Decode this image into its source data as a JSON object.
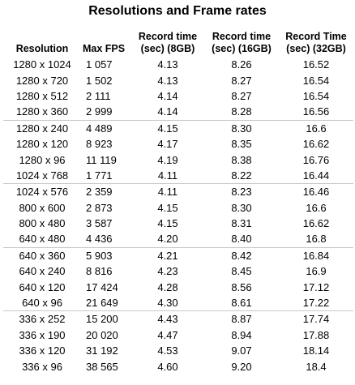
{
  "title": "Resolutions and Frame rates",
  "headers": {
    "resolution": "Resolution",
    "max_fps": "Max FPS",
    "record_8gb_line1": "Record time",
    "record_8gb_line2": "(sec) (8GB)",
    "record_16gb_line1": "Record time",
    "record_16gb_line2": "(sec) (16GB)",
    "record_32gb_line1": "Record Time",
    "record_32gb_line2": "(sec) (32GB)"
  },
  "rows": [
    {
      "resolution": "1280 x 1024",
      "max_fps": "1 057",
      "t8": "4.13",
      "t16": "8.26",
      "t32": "16.52"
    },
    {
      "resolution": "1280 x 720",
      "max_fps": "1 502",
      "t8": "4.13",
      "t16": "8.27",
      "t32": "16.54"
    },
    {
      "resolution": "1280 x 512",
      "max_fps": "2 111",
      "t8": "4.14",
      "t16": "8.27",
      "t32": "16.54"
    },
    {
      "resolution": "1280 x 360",
      "max_fps": "2 999",
      "t8": "4.14",
      "t16": "8.28",
      "t32": "16.56"
    },
    {
      "resolution": "1280 x 240",
      "max_fps": "4 489",
      "t8": "4.15",
      "t16": "8.30",
      "t32": "16.6"
    },
    {
      "resolution": "1280 x 120",
      "max_fps": "8 923",
      "t8": "4.17",
      "t16": "8.35",
      "t32": "16.62"
    },
    {
      "resolution": "1280 x 96",
      "max_fps": "11 119",
      "t8": "4.19",
      "t16": "8.38",
      "t32": "16.76"
    },
    {
      "resolution": "1024 x 768",
      "max_fps": "1 771",
      "t8": "4.11",
      "t16": "8.22",
      "t32": "16.44"
    },
    {
      "resolution": "1024 x 576",
      "max_fps": "2 359",
      "t8": "4.11",
      "t16": "8.23",
      "t32": "16.46"
    },
    {
      "resolution": "800 x 600",
      "max_fps": "2 873",
      "t8": "4.15",
      "t16": "8.30",
      "t32": "16.6"
    },
    {
      "resolution": "800 x 480",
      "max_fps": "3 587",
      "t8": "4.15",
      "t16": "8.31",
      "t32": "16.62"
    },
    {
      "resolution": "640 x 480",
      "max_fps": "4 436",
      "t8": "4.20",
      "t16": "8.40",
      "t32": "16.8"
    },
    {
      "resolution": "640 x 360",
      "max_fps": "5 903",
      "t8": "4.21",
      "t16": "8.42",
      "t32": "16.84"
    },
    {
      "resolution": "640 x 240",
      "max_fps": "8 816",
      "t8": "4.23",
      "t16": "8.45",
      "t32": "16.9"
    },
    {
      "resolution": "640 x 120",
      "max_fps": "17 424",
      "t8": "4.28",
      "t16": "8.56",
      "t32": "17.12"
    },
    {
      "resolution": "640 x 96",
      "max_fps": "21 649",
      "t8": "4.30",
      "t16": "8.61",
      "t32": "17.22"
    },
    {
      "resolution": "336 x 252",
      "max_fps": "15 200",
      "t8": "4.43",
      "t16": "8.87",
      "t32": "17.74"
    },
    {
      "resolution": "336 x 190",
      "max_fps": "20 020",
      "t8": "4.47",
      "t16": "8.94",
      "t32": "17.88"
    },
    {
      "resolution": "336 x 120",
      "max_fps": "31 192",
      "t8": "4.53",
      "t16": "9.07",
      "t32": "18.14"
    },
    {
      "resolution": "336 x 96",
      "max_fps": "38 565",
      "t8": "4.60",
      "t16": "9.20",
      "t32": "18.4"
    }
  ]
}
